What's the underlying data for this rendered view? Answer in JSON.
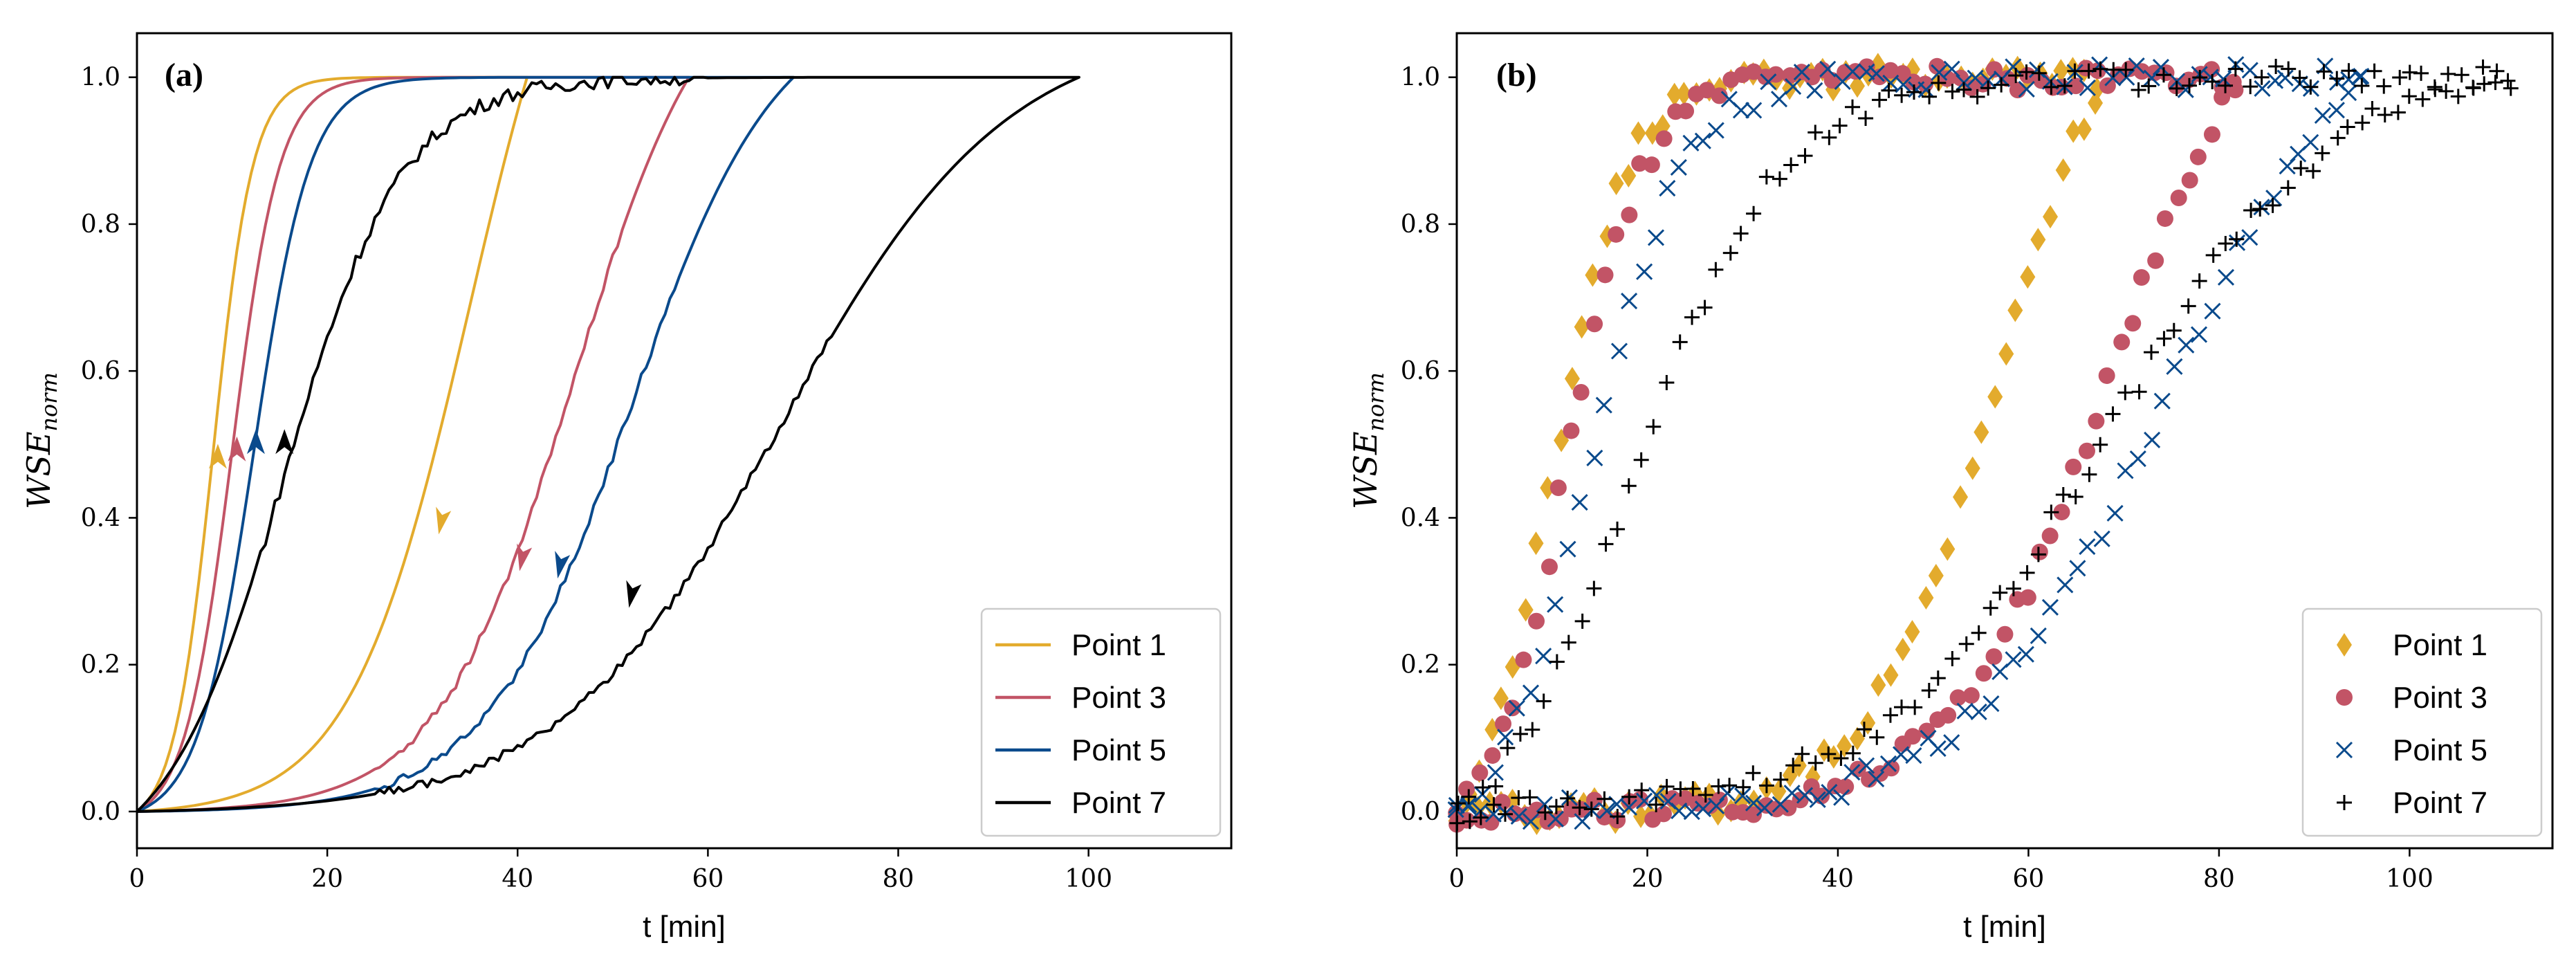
{
  "colors": {
    "point1": "#E3AB2D",
    "point3": "#C25466",
    "point5": "#0A4A8C",
    "point7": "#000000"
  },
  "chart_data": [
    {
      "type": "line",
      "panel_label": "(a)",
      "xlabel": "t [min]",
      "ylabel": "WSE",
      "ylabel_sub": "norm",
      "xlim": [
        0,
        115
      ],
      "ylim": [
        -0.05,
        1.06
      ],
      "xticks": [
        "0",
        "20",
        "40",
        "60",
        "80",
        "100"
      ],
      "yticks": [
        "0.0",
        "0.2",
        "0.4",
        "0.6",
        "0.8",
        "1.0"
      ],
      "legend_location": "lower-right",
      "series": [
        {
          "name": "Point 1",
          "color_key": "point1",
          "rise_t50": 8.0,
          "rise_k": 0.48,
          "fall_t50": 35.0,
          "fall_k": 0.16,
          "t_peak": 41,
          "arrow_rise": [
            8.5,
            0.48
          ],
          "arrow_fall": [
            32,
            0.4
          ]
        },
        {
          "name": "Point 3",
          "color_key": "point3",
          "rise_t50": 10.0,
          "rise_k": 0.4,
          "fall_t50": 46.0,
          "fall_k": 0.14,
          "t_peak": 58,
          "arrow_rise": [
            10.5,
            0.49
          ],
          "arrow_fall": [
            40.5,
            0.35
          ]
        },
        {
          "name": "Point 5",
          "color_key": "point5",
          "rise_t50": 12.3,
          "rise_k": 0.34,
          "fall_t50": 52.0,
          "fall_k": 0.13,
          "t_peak": 69,
          "arrow_rise": [
            12.5,
            0.5
          ],
          "arrow_fall": [
            44.5,
            0.34
          ]
        },
        {
          "name": "Point 7",
          "color_key": "point7",
          "rise_t50": 15.5,
          "rise_k": 0.16,
          "fall_t50": 68.0,
          "fall_k": 0.085,
          "t_peak": 99,
          "arrow_rise": [
            15.5,
            0.5
          ],
          "arrow_fall": [
            52,
            0.3
          ]
        }
      ]
    },
    {
      "type": "scatter",
      "panel_label": "(b)",
      "xlabel": "t [min]",
      "ylabel": "WSE",
      "ylabel_sub": "norm",
      "xlim": [
        0,
        115
      ],
      "ylim": [
        -0.05,
        1.06
      ],
      "xticks": [
        "0",
        "20",
        "40",
        "60",
        "80",
        "100"
      ],
      "yticks": [
        "0.0",
        "0.2",
        "0.4",
        "0.6",
        "0.8",
        "1.0"
      ],
      "legend_location": "lower-right",
      "series": [
        {
          "name": "Point 1",
          "marker": "diamond",
          "color_key": "point1",
          "rise_t50": 10.0,
          "rise_k": 0.26,
          "fall_t50": 57.0,
          "fall_k": 0.15,
          "t_peak": 68,
          "step": 1.2
        },
        {
          "name": "Point 3",
          "marker": "circle",
          "color_key": "point3",
          "rise_t50": 11.5,
          "rise_k": 0.25,
          "fall_t50": 69.0,
          "fall_k": 0.12,
          "t_peak": 82,
          "step": 1.2
        },
        {
          "name": "Point 5",
          "marker": "x",
          "color_key": "point5",
          "rise_t50": 14.0,
          "rise_k": 0.21,
          "fall_t50": 74.0,
          "fall_k": 0.1,
          "t_peak": 96,
          "step": 1.3
        },
        {
          "name": "Point 7",
          "marker": "plus",
          "color_key": "point7",
          "rise_t50": 18.5,
          "rise_k": 0.13,
          "fall_t50": 68.0,
          "fall_k": 0.085,
          "t_peak": 111,
          "step": 1.3
        }
      ]
    }
  ]
}
